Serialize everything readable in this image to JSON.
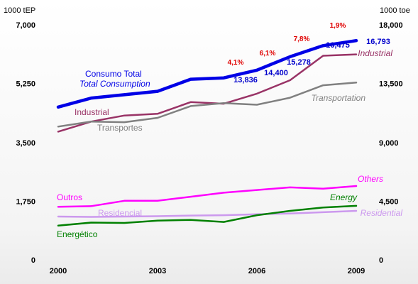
{
  "chart_data": {
    "type": "line",
    "x": [
      2000,
      2001,
      2002,
      2003,
      2004,
      2005,
      2006,
      2007,
      2008,
      2009
    ],
    "x_tick_labels": [
      "2000",
      "2003",
      "2006",
      "2009"
    ],
    "y_left_unit": "1000 tEP",
    "y_right_unit": "1000 toe",
    "y_left_ticks": [
      "7,000",
      "5,250",
      "3,500",
      "1,750",
      "0"
    ],
    "y_right_ticks": [
      "18,000",
      "13,500",
      "9,000",
      "4,500",
      "0"
    ],
    "ylim": [
      0,
      7000
    ],
    "grid": false,
    "series": [
      {
        "id": "total",
        "name_pt": "Consumo Total",
        "name_en": "Total Consumption",
        "color": "#0000e6",
        "values": [
          4550,
          4820,
          4920,
          5020,
          5380,
          5420,
          5650,
          6050,
          6380,
          6530
        ]
      },
      {
        "id": "industrial",
        "name_en": "Industrial",
        "name_pt": "Industrial",
        "color": "#993366",
        "values": [
          3820,
          4120,
          4300,
          4350,
          4700,
          4650,
          4950,
          5350,
          6080,
          6120
        ]
      },
      {
        "id": "transport",
        "name_pt": "Transportes",
        "name_en": "Transportation",
        "color": "#808080",
        "values": [
          3970,
          4120,
          4100,
          4230,
          4580,
          4670,
          4620,
          4830,
          5200,
          5280
        ]
      },
      {
        "id": "others",
        "name_pt": "Outros",
        "name_en": "Others",
        "color": "#ff00ff",
        "values": [
          1580,
          1600,
          1760,
          1760,
          1880,
          2000,
          2080,
          2160,
          2120,
          2200
        ]
      },
      {
        "id": "residential",
        "name_pt": "Residencial",
        "name_en": "Residential",
        "color": "#cc99ee",
        "values": [
          1290,
          1280,
          1290,
          1300,
          1320,
          1330,
          1360,
          1380,
          1420,
          1460
        ]
      },
      {
        "id": "energy",
        "name_pt": "Energético",
        "name_en": "Energy",
        "color": "#008000",
        "values": [
          1020,
          1110,
          1100,
          1170,
          1190,
          1130,
          1330,
          1460,
          1560,
          1610
        ]
      }
    ],
    "annotations": {
      "percentages": [
        {
          "label": "4,1%",
          "x": 2005
        },
        {
          "label": "6,1%",
          "x": 2006
        },
        {
          "label": "7,8%",
          "x": 2007
        },
        {
          "label": "1,9%",
          "x": 2008
        }
      ],
      "total_values": [
        {
          "label": "13,836",
          "x": 2005
        },
        {
          "label": "14,400",
          "x": 2006
        },
        {
          "label": "15,278",
          "x": 2007
        },
        {
          "label": "16,475",
          "x": 2008
        },
        {
          "label": "16,793",
          "x": 2009
        }
      ]
    }
  }
}
